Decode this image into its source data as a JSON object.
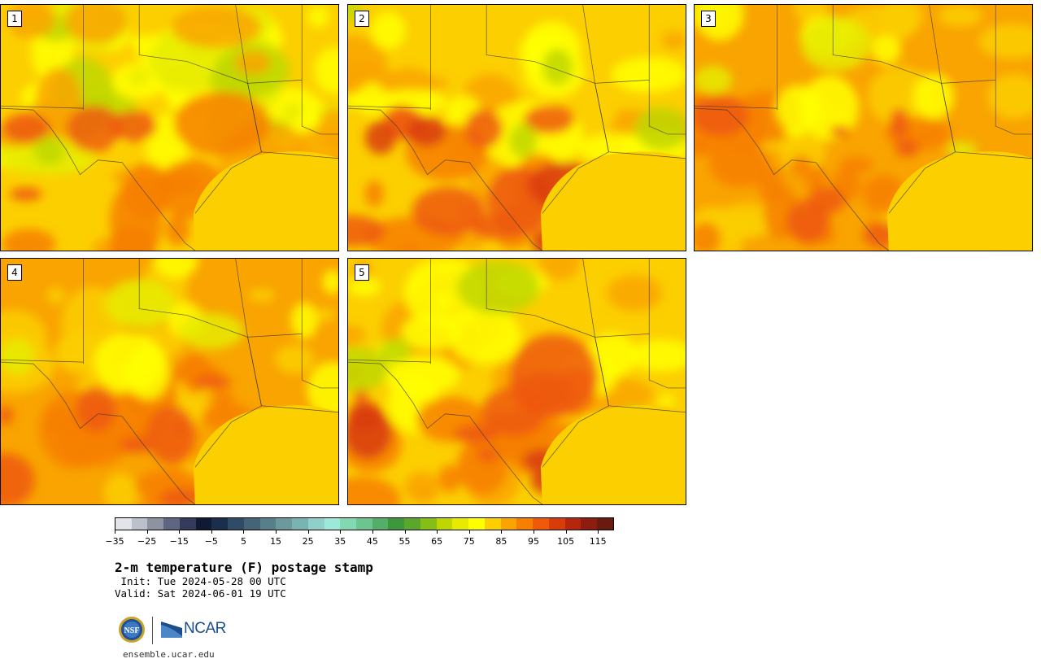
{
  "panels": [
    {
      "label": "1",
      "theme": "cool"
    },
    {
      "label": "2",
      "theme": "hotcore"
    },
    {
      "label": "3",
      "theme": "warm"
    },
    {
      "label": "4",
      "theme": "warm"
    },
    {
      "label": "5",
      "theme": "hotcore"
    }
  ],
  "colorbar": {
    "colors": [
      "#e2e4ea",
      "#bcc0cb",
      "#8e93a2",
      "#5f6681",
      "#353b5b",
      "#0f1b34",
      "#1c2e4d",
      "#304b66",
      "#446478",
      "#577f89",
      "#6c9a9c",
      "#7ab4b2",
      "#8fd0ca",
      "#9ee8da",
      "#82d8b0",
      "#6cc48e",
      "#55ad6a",
      "#3c973d",
      "#5aa72b",
      "#85be17",
      "#bfd700",
      "#e6eb00",
      "#ffff00",
      "#fccf00",
      "#f9a400",
      "#f77f00",
      "#ef5909",
      "#d93c0b",
      "#b5260d",
      "#8e1d0f",
      "#6b1a0f"
    ],
    "min": -35,
    "max": 120,
    "tick_values": [
      -35,
      -25,
      -15,
      -5,
      5,
      15,
      25,
      35,
      45,
      55,
      65,
      75,
      85,
      95,
      105,
      115
    ],
    "tick_labels": [
      "−35",
      "−25",
      "−15",
      "−5",
      "5",
      "15",
      "25",
      "35",
      "45",
      "55",
      "65",
      "75",
      "85",
      "95",
      "105",
      "115"
    ]
  },
  "title": "2-m temperature (F) postage stamp",
  "init_line": " Init: Tue 2024-05-28 00 UTC",
  "valid_line": "Valid: Sat 2024-06-01 19 UTC",
  "logo": {
    "nsf_text": "NSF",
    "ncar_text": "NCAR"
  },
  "footer": "ensemble.ucar.edu"
}
